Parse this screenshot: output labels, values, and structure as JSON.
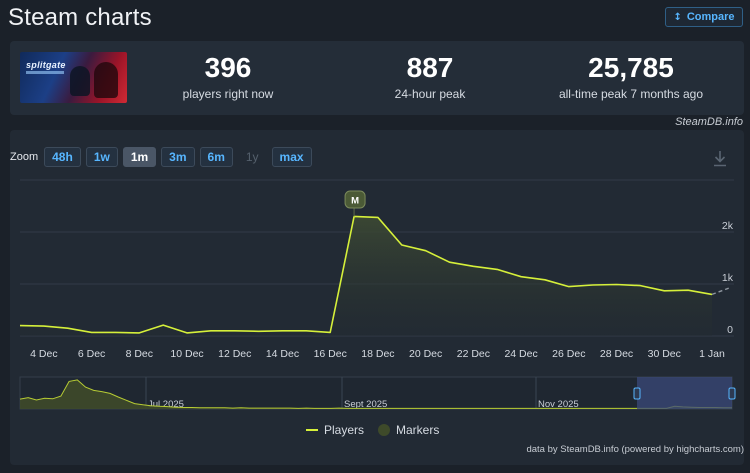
{
  "page": {
    "title": "Steam charts",
    "compare_label": "Compare"
  },
  "stats": [
    {
      "value": "396",
      "label": "players right now"
    },
    {
      "value": "887",
      "label": "24-hour peak"
    },
    {
      "value": "25,785",
      "label": "all-time peak 7 months ago"
    }
  ],
  "game": {
    "logo_text": "splitgate"
  },
  "credit_top": "SteamDB.info",
  "zoom": {
    "label": "Zoom",
    "buttons": [
      {
        "label": "48h",
        "state": "normal"
      },
      {
        "label": "1w",
        "state": "normal"
      },
      {
        "label": "1m",
        "state": "active"
      },
      {
        "label": "3m",
        "state": "normal"
      },
      {
        "label": "6m",
        "state": "normal"
      },
      {
        "label": "1y",
        "state": "disabled"
      },
      {
        "label": "max",
        "state": "normal"
      }
    ]
  },
  "chart_data": {
    "type": "area",
    "x": [
      "Dec 3",
      "Dec 4",
      "Dec 5",
      "Dec 6",
      "Dec 7",
      "Dec 8",
      "Dec 9",
      "Dec 10",
      "Dec 11",
      "Dec 12",
      "Dec 13",
      "Dec 14",
      "Dec 15",
      "Dec 16",
      "Dec 17",
      "Dec 18",
      "Dec 19",
      "Dec 20",
      "Dec 21",
      "Dec 22",
      "Dec 23",
      "Dec 24",
      "Dec 25",
      "Dec 26",
      "Dec 27",
      "Dec 28",
      "Dec 29",
      "Dec 30",
      "Dec 31",
      "Jan 1"
    ],
    "series": [
      {
        "name": "Players",
        "values": [
          200,
          190,
          150,
          70,
          70,
          60,
          210,
          60,
          100,
          100,
          90,
          100,
          100,
          70,
          2300,
          2280,
          1750,
          1640,
          1420,
          1340,
          1280,
          1140,
          1080,
          950,
          980,
          990,
          970,
          870,
          880,
          800
        ]
      }
    ],
    "projection": {
      "from": "Jan 1",
      "to": "Jan 2",
      "values": [
        800,
        920
      ]
    },
    "x_ticks": [
      "4 Dec",
      "6 Dec",
      "8 Dec",
      "10 Dec",
      "12 Dec",
      "14 Dec",
      "16 Dec",
      "18 Dec",
      "20 Dec",
      "22 Dec",
      "24 Dec",
      "26 Dec",
      "28 Dec",
      "30 Dec",
      "1 Jan"
    ],
    "y_ticks": [
      "0",
      "1k",
      "2k"
    ],
    "ylim": [
      0,
      3000
    ],
    "marker": {
      "label": "M",
      "x": "Dec 17"
    },
    "legend": [
      "Players",
      "Markers"
    ],
    "navigator_ticks": [
      "Jul 2025",
      "Sept 2025",
      "Nov 2025"
    ],
    "navigator_overview": [
      0.33,
      0.38,
      0.3,
      0.36,
      0.34,
      0.43,
      0.92,
      0.97,
      0.73,
      0.62,
      0.58,
      0.52,
      0.4,
      0.29,
      0.18,
      0.14,
      0.11,
      0.09,
      0.08,
      0.06,
      0.05,
      0.05,
      0.04,
      0.04,
      0.04,
      0.04,
      0.03,
      0.04,
      0.03,
      0.03,
      0.03,
      0.03,
      0.03,
      0.03,
      0.02,
      0.03,
      0.02,
      0.02,
      0.02,
      0.03,
      0.02,
      0.02,
      0.02,
      0.02,
      0.02,
      0.02,
      0.02,
      0.02,
      0.02,
      0.02,
      0.02,
      0.02,
      0.02,
      0.02,
      0.02,
      0.02,
      0.02,
      0.02,
      0.02,
      0.02,
      0.02,
      0.02,
      0.02,
      0.02,
      0.02,
      0.02,
      0.02,
      0.02,
      0.02,
      0.02,
      0.02,
      0.02,
      0.02,
      0.02,
      0.02,
      0.02,
      0.02,
      0.02,
      0.02,
      0.02,
      0.09,
      0.07,
      0.06,
      0.05,
      0.05,
      0.05,
      0.04,
      0.04
    ],
    "colors": {
      "line": "#d6f03a",
      "area_top": "#3d4a33",
      "grid": "#313b47",
      "marker": "#4b5a36",
      "navigator_selected": "#3b4a7a"
    }
  },
  "credit_bottom": "data by SteamDB.info (powered by highcharts.com)"
}
